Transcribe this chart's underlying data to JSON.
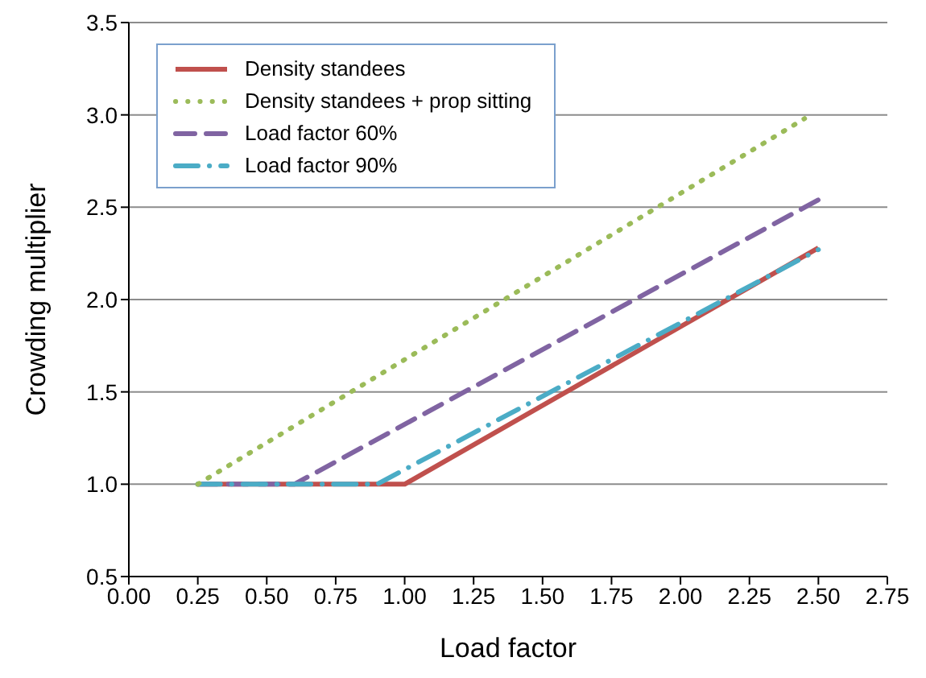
{
  "chart_data": {
    "type": "line",
    "xlabel": "Load factor",
    "ylabel": "Crowding multiplier",
    "xlim": [
      0,
      2.75
    ],
    "xticks": [
      {
        "value": 0,
        "label": "0.00"
      },
      {
        "value": 0.25,
        "label": "0.25"
      },
      {
        "value": 0.5,
        "label": "0.50"
      },
      {
        "value": 0.75,
        "label": "0.75"
      },
      {
        "value": 1,
        "label": "1.00"
      },
      {
        "value": 1.25,
        "label": "1.25"
      },
      {
        "value": 1.5,
        "label": "1.50"
      },
      {
        "value": 1.75,
        "label": "1.75"
      },
      {
        "value": 2,
        "label": "2.00"
      },
      {
        "value": 2.25,
        "label": "2.25"
      },
      {
        "value": 2.5,
        "label": "2.50"
      },
      {
        "value": 2.75,
        "label": "2.75"
      }
    ],
    "ylim": [
      0.5,
      3.5
    ],
    "yticks": [
      {
        "value": 0.5,
        "label": "0.5"
      },
      {
        "value": 1,
        "label": "1.0"
      },
      {
        "value": 1.5,
        "label": "1.5"
      },
      {
        "value": 2,
        "label": "2.0"
      },
      {
        "value": 2.5,
        "label": "2.5"
      },
      {
        "value": 3,
        "label": "3.0"
      },
      {
        "value": 3.5,
        "label": "3.5"
      }
    ],
    "grid": "y",
    "legend": "top left",
    "marker": "none",
    "series": [
      {
        "name": "Density standees",
        "color": "#c0504d",
        "line_style": "solid",
        "x": [
          0.25,
          1.0,
          2.5
        ],
        "values": [
          1.0,
          1.0,
          2.28
        ]
      },
      {
        "name": "Density standees + prop sitting",
        "color": "#9bbb59",
        "line_style": "dotted",
        "x": [
          0.25,
          2.45
        ],
        "values": [
          1.0,
          2.98
        ]
      },
      {
        "name": "Load factor 60%",
        "color": "#8064a2",
        "line_style": "dashed",
        "x": [
          0.25,
          0.6,
          2.5
        ],
        "values": [
          1.0,
          1.0,
          2.54
        ]
      },
      {
        "name": "Load factor 90%",
        "color": "#4bacc6",
        "line_style": "dashdot",
        "x": [
          0.25,
          0.9,
          2.5
        ],
        "values": [
          1.0,
          1.0,
          2.27
        ]
      }
    ]
  }
}
